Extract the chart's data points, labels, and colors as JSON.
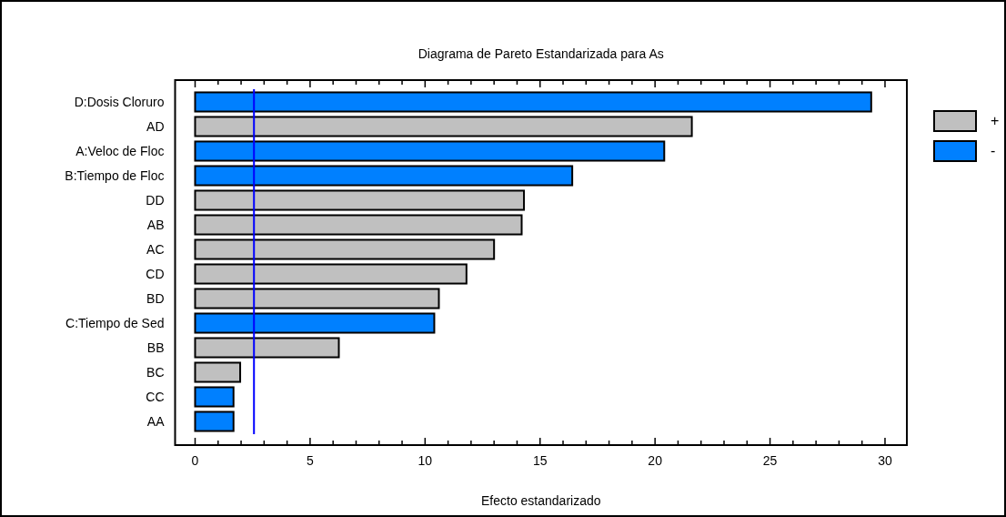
{
  "chart_data": {
    "type": "bar",
    "orientation": "horizontal",
    "title": "Diagrama de Pareto Estandarizada para As",
    "xlabel": "Efecto estandarizado",
    "categories": [
      "D:Dosis Cloruro",
      "AD",
      "A:Veloc de Floc",
      "B:Tiempo de Floc",
      "DD",
      "AB",
      "AC",
      "CD",
      "BD",
      "C:Tiempo de Sed",
      "BB",
      "BC",
      "CC",
      "AA"
    ],
    "series": [
      {
        "name": "+",
        "color": "#c0c0c0",
        "values": [
          null,
          21.6,
          null,
          null,
          14.3,
          14.2,
          13.0,
          11.8,
          10.6,
          null,
          6.25,
          1.96,
          null,
          null
        ]
      },
      {
        "name": "-",
        "color": "#0080ff",
        "values": [
          29.4,
          null,
          20.4,
          16.4,
          null,
          null,
          null,
          null,
          null,
          10.4,
          null,
          null,
          1.67,
          1.67
        ]
      }
    ],
    "xlim": [
      -0.87,
      30.95
    ],
    "xticks": [
      0,
      {
        "value": 1,
        "label": null
      },
      {
        "value": 2,
        "label": null
      },
      {
        "value": 3,
        "label": null
      },
      {
        "value": 4,
        "label": null
      },
      5,
      {
        "value": 6,
        "label": null
      },
      {
        "value": 7,
        "label": null
      },
      {
        "value": 8,
        "label": null
      },
      {
        "value": 9,
        "label": null
      },
      10,
      {
        "value": 11,
        "label": null
      },
      {
        "value": 12,
        "label": null
      },
      {
        "value": 13,
        "label": null
      },
      {
        "value": 14,
        "label": null
      },
      15,
      {
        "value": 16,
        "label": null
      },
      {
        "value": 17,
        "label": null
      },
      {
        "value": 18,
        "label": null
      },
      {
        "value": 19,
        "label": null
      },
      20,
      {
        "value": 21,
        "label": null
      },
      {
        "value": 22,
        "label": null
      },
      {
        "value": 23,
        "label": null
      },
      {
        "value": 24,
        "label": null
      },
      25,
      {
        "value": 26,
        "label": null
      },
      {
        "value": 27,
        "label": null
      },
      {
        "value": 28,
        "label": null
      },
      {
        "value": 29,
        "label": null
      },
      30
    ],
    "ref_lines": [
      {
        "axis": "x",
        "value": 2.56,
        "color": "#0000ff"
      }
    ],
    "grid": false,
    "legend": "right"
  }
}
